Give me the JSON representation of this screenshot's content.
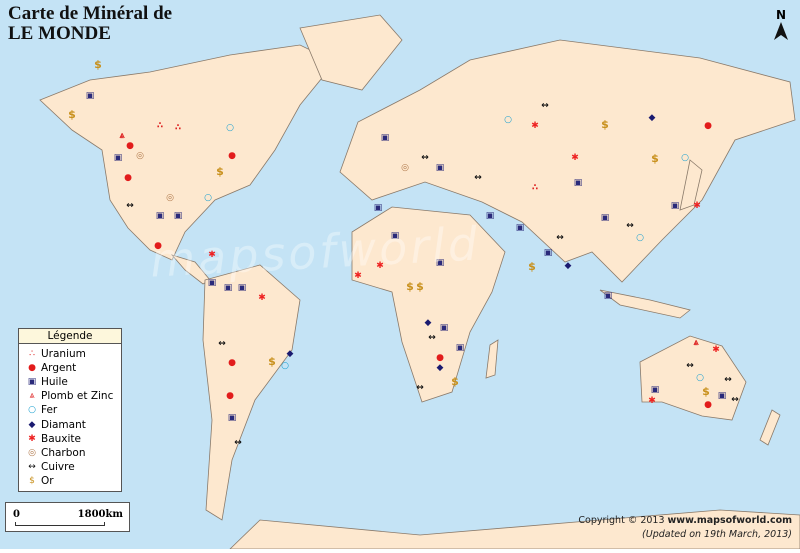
{
  "title": {
    "line1": "Carte de Minéral de",
    "line2": "LE MONDE"
  },
  "north_label": "N",
  "watermark": "mapsofworld",
  "legend": {
    "heading": "Légende",
    "items": [
      {
        "label": "Uranium",
        "symbol": "∴",
        "color": "#d22"
      },
      {
        "label": "Argent",
        "symbol": "●",
        "color": "#e21c1c"
      },
      {
        "label": "Huile",
        "symbol": "▣",
        "color": "#2a2a7a"
      },
      {
        "label": "Plomb et Zinc",
        "symbol": "⩓",
        "color": "#d22"
      },
      {
        "label": "Fer",
        "symbol": "○",
        "color": "#1aa0d0"
      },
      {
        "label": "Diamant",
        "symbol": "◆",
        "color": "#1a1a70"
      },
      {
        "label": "Bauxite",
        "symbol": "✱",
        "color": "#e22"
      },
      {
        "label": "Charbon",
        "symbol": "◎",
        "color": "#b0784a"
      },
      {
        "label": "Cuivre",
        "symbol": "↔",
        "color": "#111"
      },
      {
        "label": "Or",
        "symbol": "$",
        "color": "#c8901c"
      }
    ]
  },
  "scale": {
    "start": "0",
    "end": "1800km"
  },
  "copyright": {
    "prefix": "Copyright © 2013 ",
    "site": "www.mapsofworld.com",
    "updated": "(Updated on 19th March, 2013)"
  },
  "colors": {
    "ocean": "#c4e3f5",
    "land": "#fde8cf",
    "border": "#8a7a6a"
  }
}
